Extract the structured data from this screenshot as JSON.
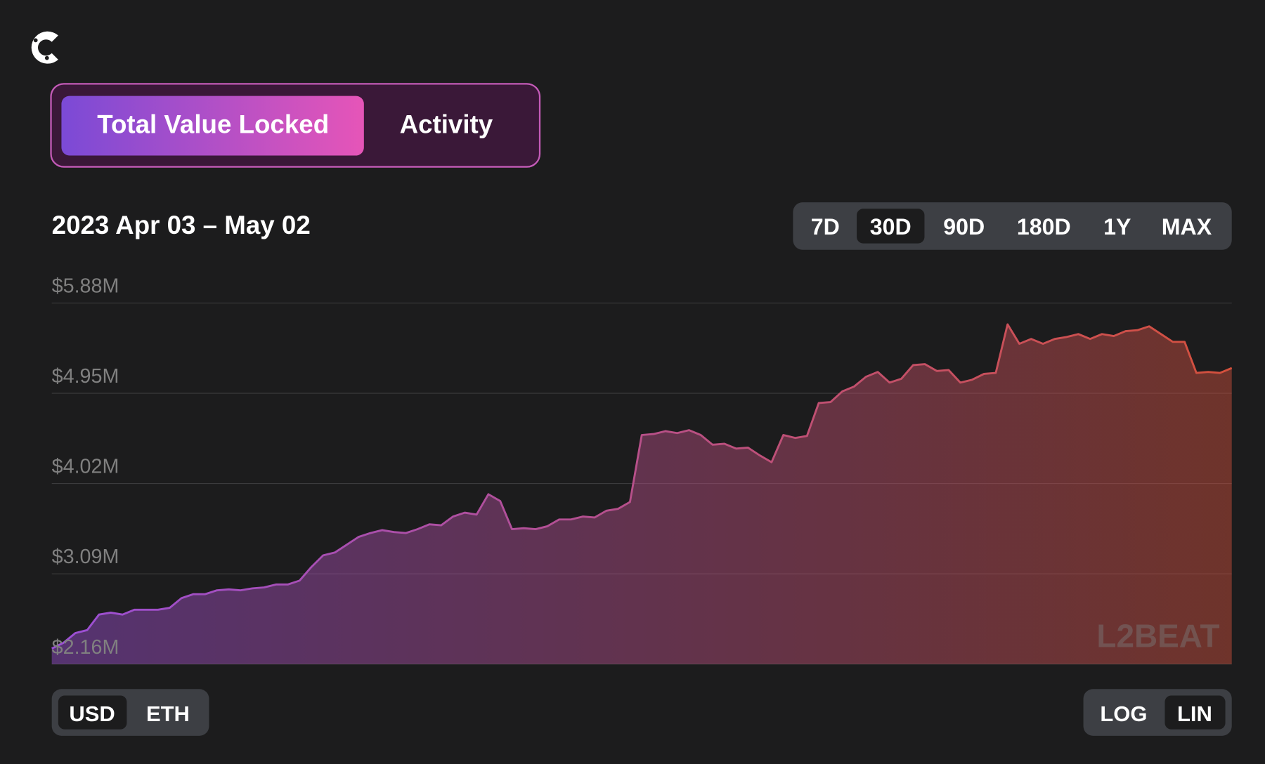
{
  "header": {
    "tabs": [
      "Total Value Locked",
      "Activity"
    ]
  },
  "date_range": "2023 Apr 03 – May 02",
  "range_buttons": [
    "7D",
    "30D",
    "90D",
    "180D",
    "1Y",
    "MAX"
  ],
  "currency_buttons": [
    "USD",
    "ETH"
  ],
  "scale_buttons": [
    "LOG",
    "LIN"
  ],
  "watermark": "L2BEAT",
  "chart_data": {
    "type": "area",
    "ylim": [
      2160000,
      5880000
    ],
    "yticks": [
      {
        "value": 5880000,
        "label": "$5.88M"
      },
      {
        "value": 4950000,
        "label": "$4.95M"
      },
      {
        "value": 4020000,
        "label": "$4.02M"
      },
      {
        "value": 3090000,
        "label": "$3.09M"
      },
      {
        "value": 2160000,
        "label": "$2.16M"
      }
    ],
    "grid": true,
    "log_scale": false,
    "color": [
      "#9b4fd6",
      "#d4503c"
    ],
    "values": [
      2320000,
      2380000,
      2480000,
      2510000,
      2670000,
      2690000,
      2670000,
      2720000,
      2720000,
      2720000,
      2740000,
      2840000,
      2880000,
      2880000,
      2920000,
      2930000,
      2920000,
      2940000,
      2950000,
      2980000,
      2980000,
      3020000,
      3160000,
      3280000,
      3310000,
      3390000,
      3470000,
      3510000,
      3540000,
      3520000,
      3510000,
      3550000,
      3600000,
      3590000,
      3680000,
      3720000,
      3700000,
      3910000,
      3840000,
      3550000,
      3560000,
      3550000,
      3580000,
      3650000,
      3650000,
      3680000,
      3670000,
      3740000,
      3760000,
      3830000,
      4520000,
      4530000,
      4560000,
      4540000,
      4570000,
      4520000,
      4420000,
      4430000,
      4380000,
      4390000,
      4310000,
      4240000,
      4520000,
      4490000,
      4510000,
      4850000,
      4860000,
      4970000,
      5020000,
      5120000,
      5170000,
      5060000,
      5100000,
      5240000,
      5250000,
      5180000,
      5190000,
      5060000,
      5090000,
      5150000,
      5160000,
      5660000,
      5460000,
      5510000,
      5460000,
      5510000,
      5530000,
      5560000,
      5510000,
      5560000,
      5540000,
      5590000,
      5600000,
      5640000,
      5560000,
      5480000,
      5480000,
      5160000,
      5170000,
      5160000,
      5210000
    ]
  }
}
